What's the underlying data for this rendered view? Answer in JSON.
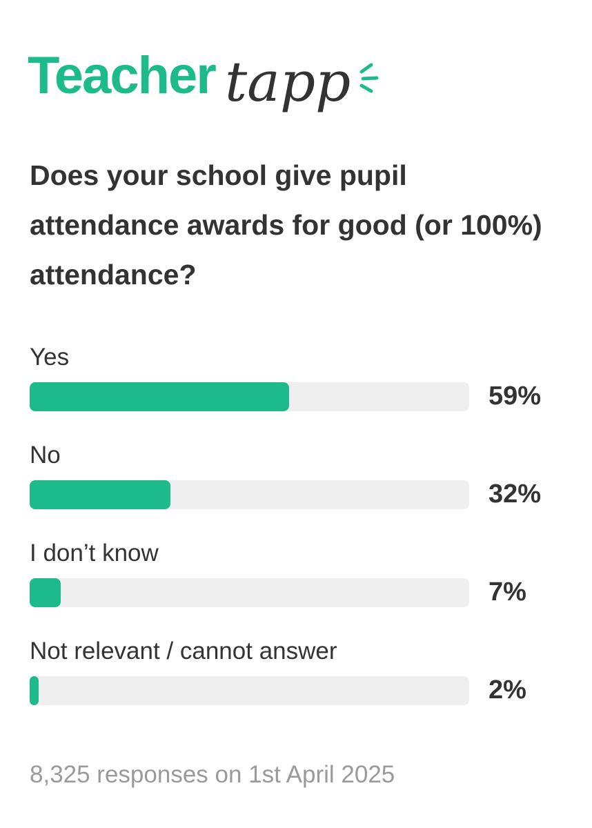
{
  "logo": {
    "brand": "Teacher",
    "script": "tapp"
  },
  "chart_data": {
    "type": "bar",
    "orientation": "horizontal",
    "title": "Does your school give pupil attendance awards for good (or 100%) attendance?",
    "categories": [
      "Yes",
      "No",
      "I don’t know",
      "Not relevant / cannot answer"
    ],
    "values": [
      59,
      32,
      7,
      2
    ],
    "value_labels": [
      "59%",
      "32%",
      "7%",
      "2%"
    ],
    "color": "#1dbb8c",
    "track_color": "#efefef",
    "xlim": [
      0,
      100
    ]
  },
  "footer": "8,325 responses on 1st April 2025"
}
